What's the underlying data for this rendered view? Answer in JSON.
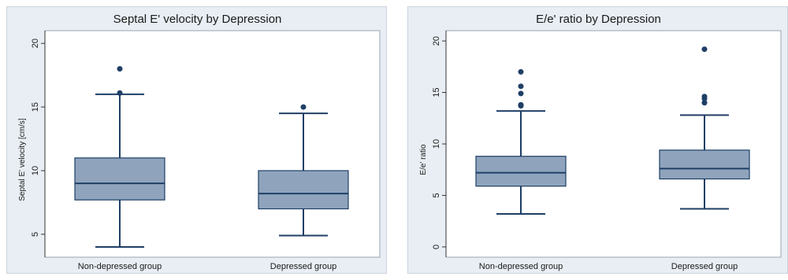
{
  "chart_data": [
    {
      "type": "box",
      "title": "Septal E' velocity by Depression",
      "xlabel": "",
      "ylabel": "Septal E' velocity [cm/s]",
      "ylim": [
        3.2,
        21
      ],
      "yticks": [
        5,
        10,
        15,
        20
      ],
      "categories": [
        "Non-depressed group",
        "Depressed group"
      ],
      "boxes": [
        {
          "min": 4,
          "q1": 7.7,
          "median": 9,
          "q3": 11,
          "max": 16,
          "outliers": [
            16.1,
            18
          ]
        },
        {
          "min": 4.9,
          "q1": 7,
          "median": 8.2,
          "q3": 10,
          "max": 14.5,
          "outliers": [
            15
          ]
        }
      ],
      "colors": {
        "box_fill": "#8fa4bc",
        "line": "#1f3f66",
        "plot_bg": "#ffffff",
        "panel_bg": "#e8eef4"
      },
      "grid": false
    },
    {
      "type": "box",
      "title": "E/e' ratio by Depression",
      "xlabel": "",
      "ylabel": "E/e' ratio",
      "ylim": [
        -1,
        21
      ],
      "yticks": [
        0,
        5,
        10,
        15,
        20
      ],
      "categories": [
        "Non-depressed group",
        "Depressed group"
      ],
      "boxes": [
        {
          "min": 3.2,
          "q1": 5.9,
          "median": 7.2,
          "q3": 8.8,
          "max": 13.2,
          "outliers": [
            13.7,
            13.8,
            14.9,
            15.6,
            17
          ]
        },
        {
          "min": 3.7,
          "q1": 6.6,
          "median": 7.6,
          "q3": 9.4,
          "max": 12.8,
          "outliers": [
            14,
            14.4,
            14.6,
            19.2
          ]
        }
      ],
      "colors": {
        "box_fill": "#8fa4bc",
        "line": "#1f3f66",
        "plot_bg": "#ffffff",
        "panel_bg": "#e8eef4"
      },
      "grid": false
    }
  ]
}
